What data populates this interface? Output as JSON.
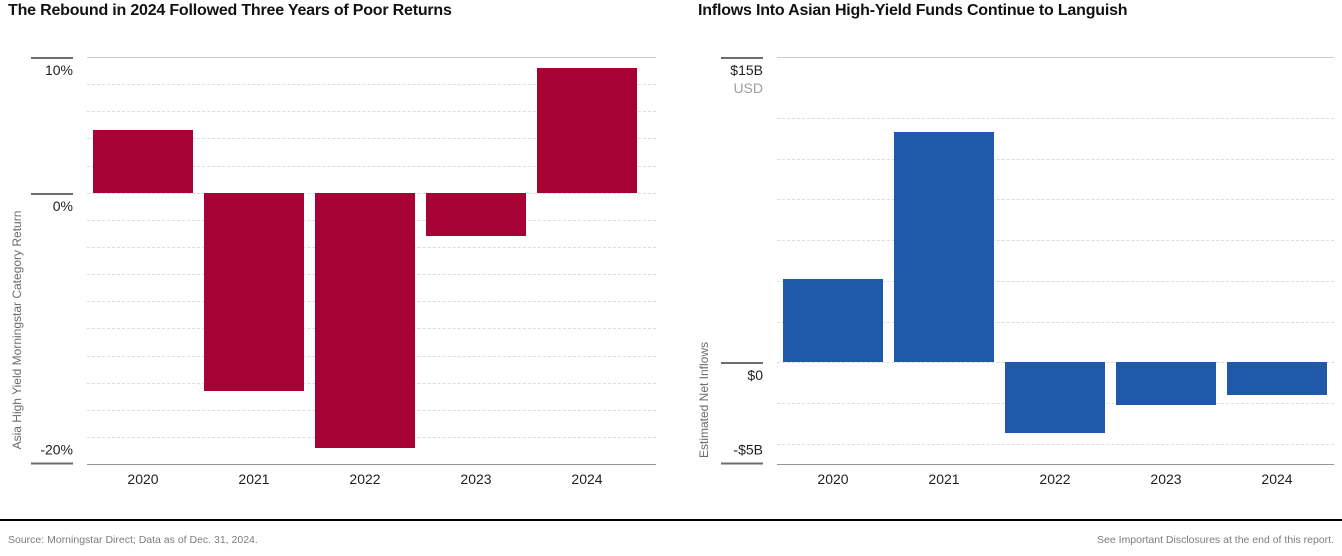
{
  "footer": {
    "source": "Source: Morningstar Direct; Data as of Dec. 31, 2024.",
    "disclosure": "See Important Disclosures at the end of this report."
  },
  "chart_data": [
    {
      "type": "bar",
      "title": "The Rebound in 2024 Followed Three Years of Poor Returns",
      "ylabel": "Asia High Yield Morningstar Category Return",
      "categories": [
        "2020",
        "2021",
        "2022",
        "2023",
        "2024"
      ],
      "values": [
        4.6,
        -14.6,
        -18.8,
        -3.2,
        9.2
      ],
      "unit": "percent",
      "ylim": [
        -20,
        10
      ],
      "grid": "dashed, every 2%",
      "gridlines": [
        8,
        6,
        4,
        2,
        0,
        -2,
        -4,
        -6,
        -8,
        -10,
        -12,
        -14,
        -16,
        -18
      ],
      "yticks": [
        {
          "value": 10,
          "label": "10%",
          "side": "below"
        },
        {
          "value": 0,
          "label": "0%",
          "side": "below"
        },
        {
          "value": -20,
          "label": "-20%",
          "side": "above"
        }
      ],
      "bar_color": "#A70235"
    },
    {
      "type": "bar",
      "title": "Inflows Into Asian High-Yield Funds Continue to Languish",
      "ylabel": "Estimated Net Inflows",
      "categories": [
        "2020",
        "2021",
        "2022",
        "2023",
        "2024"
      ],
      "values": [
        4.1,
        11.3,
        -3.5,
        -2.1,
        -1.6
      ],
      "unit": "billions USD",
      "ylim": [
        -5,
        15
      ],
      "grid": "dashed, every $2B",
      "gridlines": [
        12,
        10,
        8,
        6,
        4,
        2,
        0,
        -2,
        -4
      ],
      "yticks": [
        {
          "value": 15,
          "label": "$15B",
          "sub": "USD",
          "side": "below"
        },
        {
          "value": 0,
          "label": "$0",
          "side": "below"
        },
        {
          "value": -5,
          "label": "-$5B",
          "side": "above"
        }
      ],
      "bar_color": "#2059AC"
    }
  ]
}
